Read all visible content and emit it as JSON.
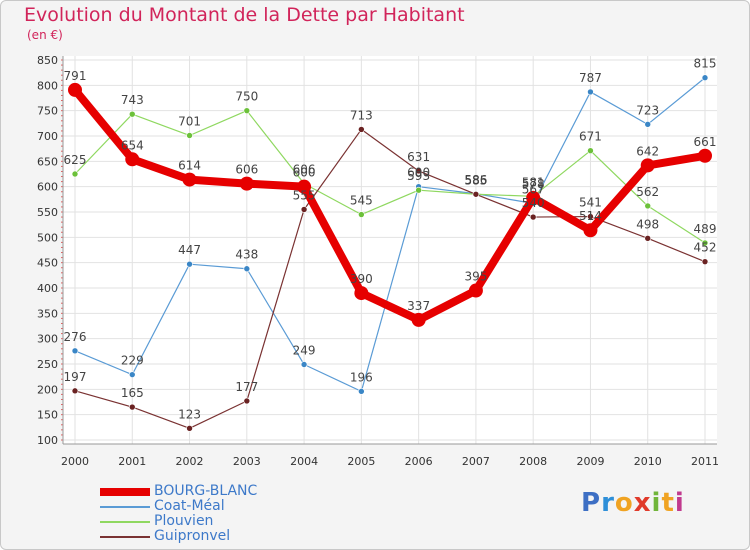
{
  "title": "Evolution du Montant de la Dette par Habitant",
  "subtitle": "(en €)",
  "logo": {
    "text": "Proxiti",
    "letters": [
      "P",
      "r",
      "o",
      "x",
      "i",
      "t",
      "i"
    ],
    "letter_colors": [
      "#3d6fc4",
      "#2e8fd8",
      "#f0a322",
      "#e03a2a",
      "#71b53a",
      "#f0a322",
      "#c13a8e"
    ]
  },
  "chart_data": {
    "type": "line",
    "x": [
      "2000",
      "2001",
      "2002",
      "2003",
      "2004",
      "2005",
      "2006",
      "2007",
      "2008",
      "2009",
      "2010",
      "2011"
    ],
    "ylim": [
      100,
      850
    ],
    "yticks": [
      100,
      150,
      200,
      250,
      300,
      350,
      400,
      450,
      500,
      550,
      600,
      650,
      700,
      750,
      800,
      850
    ],
    "grid": true,
    "legend_position": "bottom-left",
    "series": [
      {
        "name": "BOURG-BLANC",
        "color": "#e60000",
        "width": 8,
        "marker_color": "#e60000",
        "values": [
          791,
          654,
          614,
          606,
          600,
          390,
          337,
          395,
          578,
          514,
          642,
          661
        ],
        "labels": [
          "791",
          "654",
          "614",
          "606",
          "600",
          "390",
          "337",
          "395",
          "578",
          "514",
          "642",
          "661"
        ]
      },
      {
        "name": "Coat-Méal",
        "color": "#5a9bd5",
        "width": 1.2,
        "marker_color": "#3a86c6",
        "values": [
          276,
          229,
          447,
          438,
          249,
          196,
          600,
          586,
          567,
          787,
          723,
          815
        ],
        "labels": [
          "276",
          "229",
          "447",
          "438",
          "249",
          "196",
          "600",
          "586",
          "567",
          "787",
          "723",
          "815"
        ]
      },
      {
        "name": "Plouvien",
        "color": "#8fd860",
        "width": 1.2,
        "marker_color": "#6cc13a",
        "values": [
          625,
          743,
          701,
          750,
          606,
          545,
          593,
          585,
          581,
          671,
          562,
          489
        ],
        "labels": [
          "625",
          "743",
          "701",
          "750",
          "606",
          "545",
          "593",
          "585",
          "581",
          "671",
          "562",
          "489"
        ]
      },
      {
        "name": "Guipronvel",
        "color": "#7a3232",
        "width": 1.2,
        "marker_color": "#6a2222",
        "values": [
          197,
          165,
          123,
          177,
          555,
          713,
          631,
          585,
          540,
          541,
          498,
          452
        ],
        "labels": [
          "197",
          "165",
          "123",
          "177",
          "555",
          "713",
          "631",
          "585",
          "540",
          "541",
          "498",
          "452"
        ]
      }
    ]
  }
}
